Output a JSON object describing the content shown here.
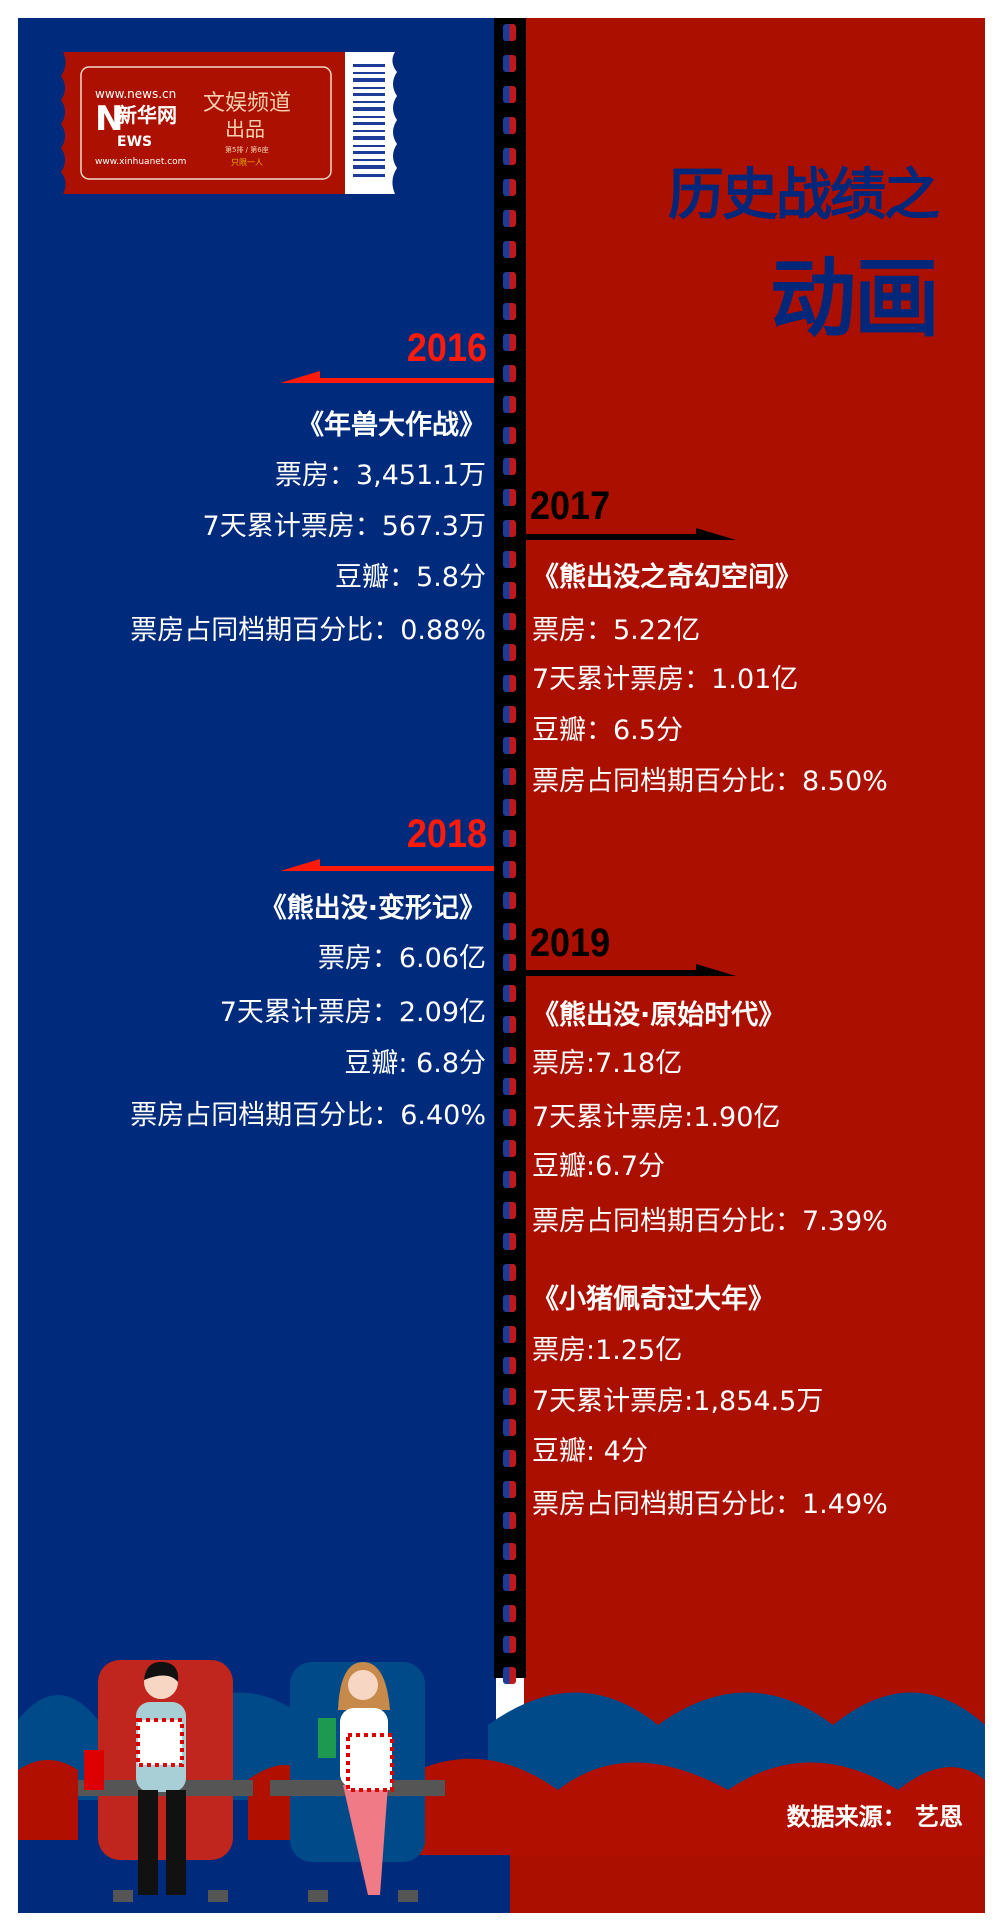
{
  "logo": {
    "site": "www.news.cn",
    "brand": "新华网",
    "brand_en": "NEWS",
    "site2": "www.xinhuanet.com",
    "channel": "文娱频道",
    "produced": "出品",
    "small1": "第5排 / 第6座",
    "small2": "只限一人"
  },
  "header": {
    "line1": "历史战绩之",
    "line2": "动画"
  },
  "colors": {
    "left_bg": "#002a7c",
    "right_bg": "#ab0f00",
    "year_red": "#ff1a0a",
    "title_blue": "#00277a"
  },
  "entries": [
    {
      "year": "2016",
      "title": "《年兽大作战》",
      "box_office": "票房：3,451.1万",
      "week": "7天累计票房：567.3万",
      "douban": "豆瓣：5.8分",
      "share": "票房占同档期百分比：0.88%"
    },
    {
      "year": "2017",
      "title": "《熊出没之奇幻空间》",
      "box_office": "票房：5.22亿",
      "week": "7天累计票房：1.01亿",
      "douban": "豆瓣：6.5分",
      "share": "票房占同档期百分比：8.50%"
    },
    {
      "year": "2018",
      "title": "《熊出没·变形记》",
      "box_office": "票房：6.06亿",
      "week": "7天累计票房：2.09亿",
      "douban": "豆瓣: 6.8分",
      "share": "票房占同档期百分比：6.40%"
    },
    {
      "year": "2019",
      "title": "《熊出没·原始时代》",
      "box_office": "票房:7.18亿",
      "week": "7天累计票房:1.90亿",
      "douban": "豆瓣:6.7分",
      "share": "票房占同档期百分比：7.39%"
    },
    {
      "title": "《小猪佩奇过大年》",
      "box_office": "票房:1.25亿",
      "week": "7天累计票房:1,854.5万",
      "douban": "豆瓣: 4分",
      "share": "票房占同档期百分比：1.49%"
    }
  ],
  "footer": {
    "source": "数据来源： 艺恩"
  }
}
